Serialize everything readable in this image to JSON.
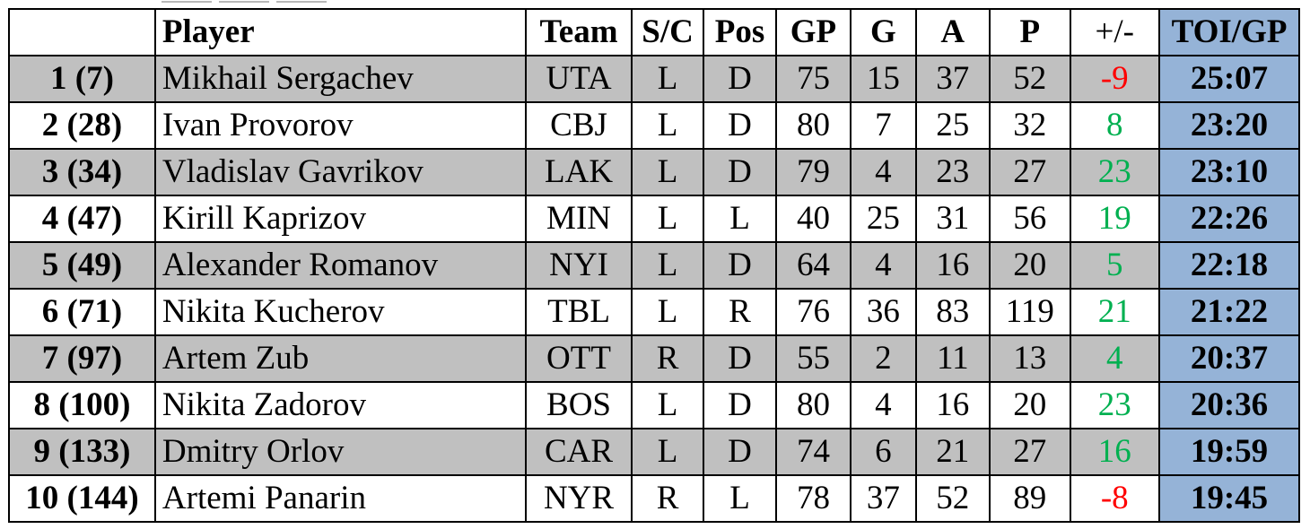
{
  "colors": {
    "shade": "#c0c0c0",
    "toi": "#95b3d7",
    "negative": "#ff0000",
    "positive": "#00b050"
  },
  "table": {
    "headers": {
      "rank": "",
      "player": "Player",
      "team": "Team",
      "sc": "S/C",
      "pos": "Pos",
      "gp": "GP",
      "g": "G",
      "a": "A",
      "p": "P",
      "plusminus": "+/-",
      "toi": "TOI/GP"
    },
    "rows": [
      {
        "rank": "1 (7)",
        "player": "Mikhail Sergachev",
        "team": "UTA",
        "sc": "L",
        "pos": "D",
        "gp": "75",
        "g": "15",
        "a": "37",
        "p": "52",
        "plusminus": "-9",
        "toi": "25:07"
      },
      {
        "rank": "2 (28)",
        "player": "Ivan Provorov",
        "team": "CBJ",
        "sc": "L",
        "pos": "D",
        "gp": "80",
        "g": "7",
        "a": "25",
        "p": "32",
        "plusminus": "8",
        "toi": "23:20"
      },
      {
        "rank": "3 (34)",
        "player": "Vladislav Gavrikov",
        "team": "LAK",
        "sc": "L",
        "pos": "D",
        "gp": "79",
        "g": "4",
        "a": "23",
        "p": "27",
        "plusminus": "23",
        "toi": "23:10"
      },
      {
        "rank": "4 (47)",
        "player": "Kirill Kaprizov",
        "team": "MIN",
        "sc": "L",
        "pos": "L",
        "gp": "40",
        "g": "25",
        "a": "31",
        "p": "56",
        "plusminus": "19",
        "toi": "22:26"
      },
      {
        "rank": "5 (49)",
        "player": "Alexander Romanov",
        "team": "NYI",
        "sc": "L",
        "pos": "D",
        "gp": "64",
        "g": "4",
        "a": "16",
        "p": "20",
        "plusminus": "5",
        "toi": "22:18"
      },
      {
        "rank": "6 (71)",
        "player": "Nikita Kucherov",
        "team": "TBL",
        "sc": "L",
        "pos": "R",
        "gp": "76",
        "g": "36",
        "a": "83",
        "p": "119",
        "plusminus": "21",
        "toi": "21:22"
      },
      {
        "rank": "7 (97)",
        "player": "Artem Zub",
        "team": "OTT",
        "sc": "R",
        "pos": "D",
        "gp": "55",
        "g": "2",
        "a": "11",
        "p": "13",
        "plusminus": "4",
        "toi": "20:37"
      },
      {
        "rank": "8 (100)",
        "player": "Nikita Zadorov",
        "team": "BOS",
        "sc": "L",
        "pos": "D",
        "gp": "80",
        "g": "4",
        "a": "16",
        "p": "20",
        "plusminus": "23",
        "toi": "20:36"
      },
      {
        "rank": "9 (133)",
        "player": "Dmitry Orlov",
        "team": "CAR",
        "sc": "L",
        "pos": "D",
        "gp": "74",
        "g": "6",
        "a": "21",
        "p": "27",
        "plusminus": "16",
        "toi": "19:59"
      },
      {
        "rank": "10 (144)",
        "player": "Artemi Panarin",
        "team": "NYR",
        "sc": "R",
        "pos": "L",
        "gp": "78",
        "g": "37",
        "a": "52",
        "p": "89",
        "plusminus": "-8",
        "toi": "19:45"
      }
    ]
  }
}
